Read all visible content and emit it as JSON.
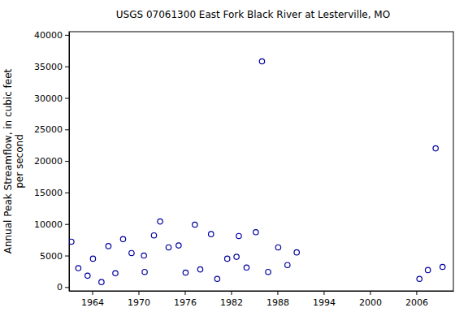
{
  "chart_data": {
    "type": "scatter",
    "title": "USGS 07061300 East Fork Black River at Lesterville, MO",
    "ylabel": [
      "Annual Peak Streamflow, in cubic feet",
      "per second"
    ],
    "x": [
      1961.3,
      1962.2,
      1963.4,
      1964.1,
      1965.2,
      1966.1,
      1967.0,
      1968.0,
      1969.1,
      1970.7,
      1970.8,
      1972.0,
      1972.8,
      1973.9,
      1975.2,
      1976.1,
      1977.3,
      1978.0,
      1979.4,
      1980.2,
      1981.5,
      1982.7,
      1983.0,
      1984.0,
      1985.2,
      1986.0,
      1986.8,
      1988.1,
      1989.3,
      1990.5,
      2006.4,
      2007.5,
      2008.5,
      2009.4
    ],
    "values": [
      7200,
      3000,
      1800,
      4500,
      800,
      6500,
      2200,
      7600,
      5400,
      5000,
      2400,
      8200,
      10400,
      6300,
      6600,
      2300,
      9900,
      2800,
      8400,
      1300,
      4500,
      4800,
      8100,
      3100,
      8700,
      35800,
      2400,
      6300,
      3500,
      5500,
      1300,
      2700,
      22000,
      3200
    ],
    "color": "#0000a0",
    "marker": "open-circle",
    "xlim": [
      1961,
      2010.8
    ],
    "xticks": [
      1964,
      1970,
      1976,
      1982,
      1988,
      1994,
      2000,
      2006
    ],
    "ylim": [
      -600,
      40500
    ],
    "yticks": [
      0,
      5000,
      10000,
      15000,
      20000,
      25000,
      30000,
      35000,
      40000
    ],
    "grid": false
  }
}
